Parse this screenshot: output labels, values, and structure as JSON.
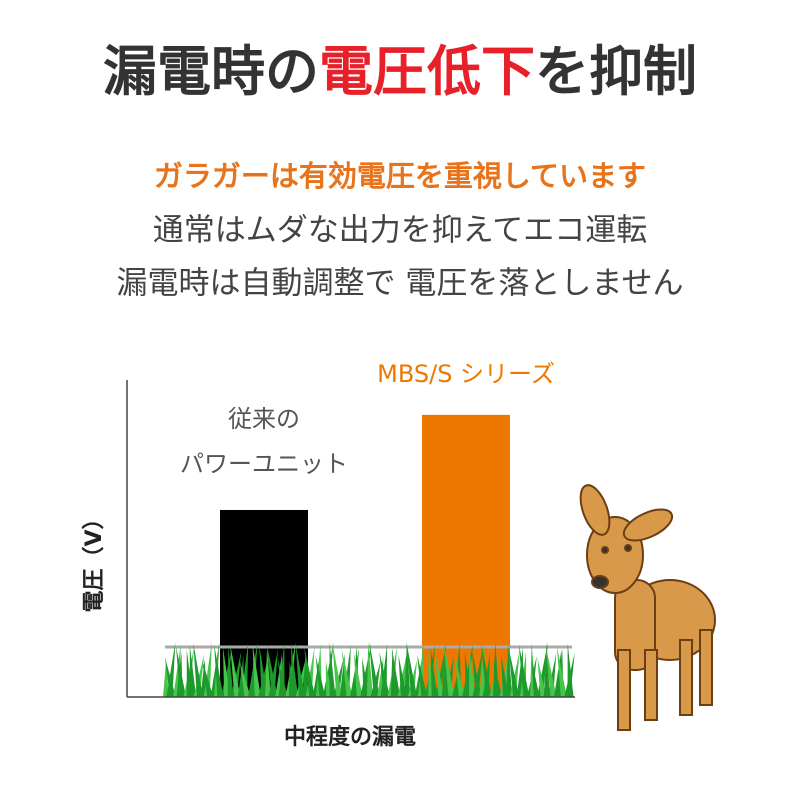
{
  "headline": {
    "part1": "漏電時の",
    "part2": "電圧低下",
    "part3": "を抑制"
  },
  "lead": "ガラガーは有効電圧を重視しています",
  "lines": [
    "通常はムダな出力を抑えてエコ運転",
    "漏電時は自動調整で 電圧を落としません"
  ],
  "chart_data": {
    "type": "bar",
    "categories": [
      "従来の\nパワーユニット",
      "MBS/S シリーズ"
    ],
    "values": [
      59,
      89
    ],
    "colors": [
      "#000000",
      "#ee7700"
    ],
    "label_colors": [
      "#555555",
      "#ee7700"
    ],
    "ylim": [
      0,
      100
    ],
    "y_label": "電圧（V）",
    "x_label": "中程度の漏電"
  }
}
